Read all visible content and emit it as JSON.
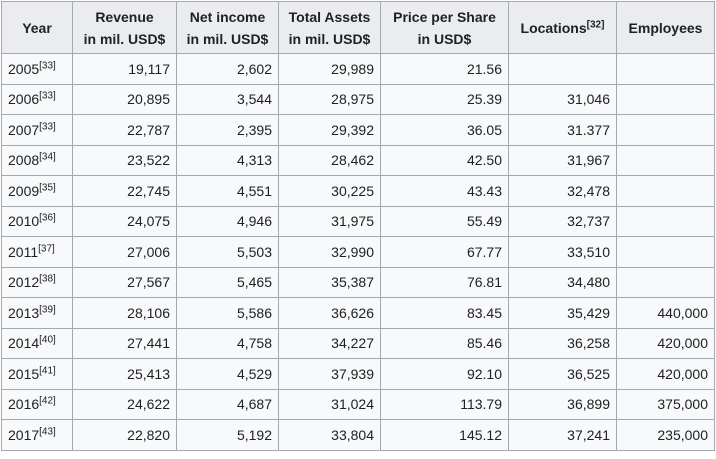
{
  "headers": {
    "year": "Year",
    "revenue": [
      "Revenue",
      "in mil. USD$"
    ],
    "net_income": [
      "Net income",
      "in mil. USD$"
    ],
    "total_assets": [
      "Total Assets",
      "in mil. USD$"
    ],
    "price_per_share": [
      "Price per Share",
      "in USD$"
    ],
    "locations": "Locations",
    "locations_ref": "[32]",
    "employees": "Employees"
  },
  "rows": [
    {
      "year": "2005",
      "ref": "[33]",
      "revenue": "19,117",
      "net_income": "2,602",
      "total_assets": "29,989",
      "price": "21.56",
      "locations": "",
      "employees": ""
    },
    {
      "year": "2006",
      "ref": "[33]",
      "revenue": "20,895",
      "net_income": "3,544",
      "total_assets": "28,975",
      "price": "25.39",
      "locations": "31,046",
      "employees": ""
    },
    {
      "year": "2007",
      "ref": "[33]",
      "revenue": "22,787",
      "net_income": "2,395",
      "total_assets": "29,392",
      "price": "36.05",
      "locations": "31.377",
      "employees": ""
    },
    {
      "year": "2008",
      "ref": "[34]",
      "revenue": "23,522",
      "net_income": "4,313",
      "total_assets": "28,462",
      "price": "42.50",
      "locations": "31,967",
      "employees": ""
    },
    {
      "year": "2009",
      "ref": "[35]",
      "revenue": "22,745",
      "net_income": "4,551",
      "total_assets": "30,225",
      "price": "43.43",
      "locations": "32,478",
      "employees": ""
    },
    {
      "year": "2010",
      "ref": "[36]",
      "revenue": "24,075",
      "net_income": "4,946",
      "total_assets": "31,975",
      "price": "55.49",
      "locations": "32,737",
      "employees": ""
    },
    {
      "year": "2011",
      "ref": "[37]",
      "revenue": "27,006",
      "net_income": "5,503",
      "total_assets": "32,990",
      "price": "67.77",
      "locations": "33,510",
      "employees": ""
    },
    {
      "year": "2012",
      "ref": "[38]",
      "revenue": "27,567",
      "net_income": "5,465",
      "total_assets": "35,387",
      "price": "76.81",
      "locations": "34,480",
      "employees": ""
    },
    {
      "year": "2013",
      "ref": "[39]",
      "revenue": "28,106",
      "net_income": "5,586",
      "total_assets": "36,626",
      "price": "83.45",
      "locations": "35,429",
      "employees": "440,000"
    },
    {
      "year": "2014",
      "ref": "[40]",
      "revenue": "27,441",
      "net_income": "4,758",
      "total_assets": "34,227",
      "price": "85.46",
      "locations": "36,258",
      "employees": "420,000"
    },
    {
      "year": "2015",
      "ref": "[41]",
      "revenue": "25,413",
      "net_income": "4,529",
      "total_assets": "37,939",
      "price": "92.10",
      "locations": "36,525",
      "employees": "420,000"
    },
    {
      "year": "2016",
      "ref": "[42]",
      "revenue": "24,622",
      "net_income": "4,687",
      "total_assets": "31,024",
      "price": "113.79",
      "locations": "36,899",
      "employees": "375,000"
    },
    {
      "year": "2017",
      "ref": "[43]",
      "revenue": "22,820",
      "net_income": "5,192",
      "total_assets": "33,804",
      "price": "145.12",
      "locations": "37,241",
      "employees": "235,000"
    }
  ],
  "colors": {
    "header_bg": "#eaecf0",
    "cell_bg": "#f8f9fa",
    "border": "#a2a9b1",
    "text": "#202122"
  }
}
